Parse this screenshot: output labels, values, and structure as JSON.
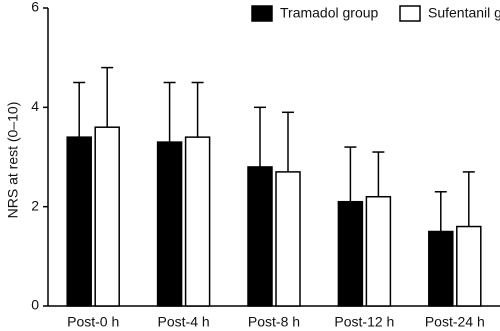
{
  "chart_data": {
    "type": "bar",
    "y_label": "NRS at rest (0–10)",
    "categories": [
      "Post-0 h",
      "Post-4 h",
      "Post-8 h",
      "Post-12 h",
      "Post-24 h"
    ],
    "series": [
      {
        "name": "Tramadol group",
        "color": "#000000",
        "values": [
          3.4,
          3.3,
          2.8,
          2.1,
          1.5
        ],
        "errors": [
          1.1,
          1.2,
          1.2,
          1.1,
          0.8
        ]
      },
      {
        "name": "Sufentanil group",
        "color": "#ffffff",
        "values": [
          3.6,
          3.4,
          2.7,
          2.2,
          1.6
        ],
        "errors": [
          1.2,
          1.1,
          1.2,
          0.9,
          1.1
        ]
      }
    ],
    "ylim": [
      0,
      6
    ],
    "yticks": [
      0,
      2,
      4,
      6
    ],
    "grid": false
  }
}
